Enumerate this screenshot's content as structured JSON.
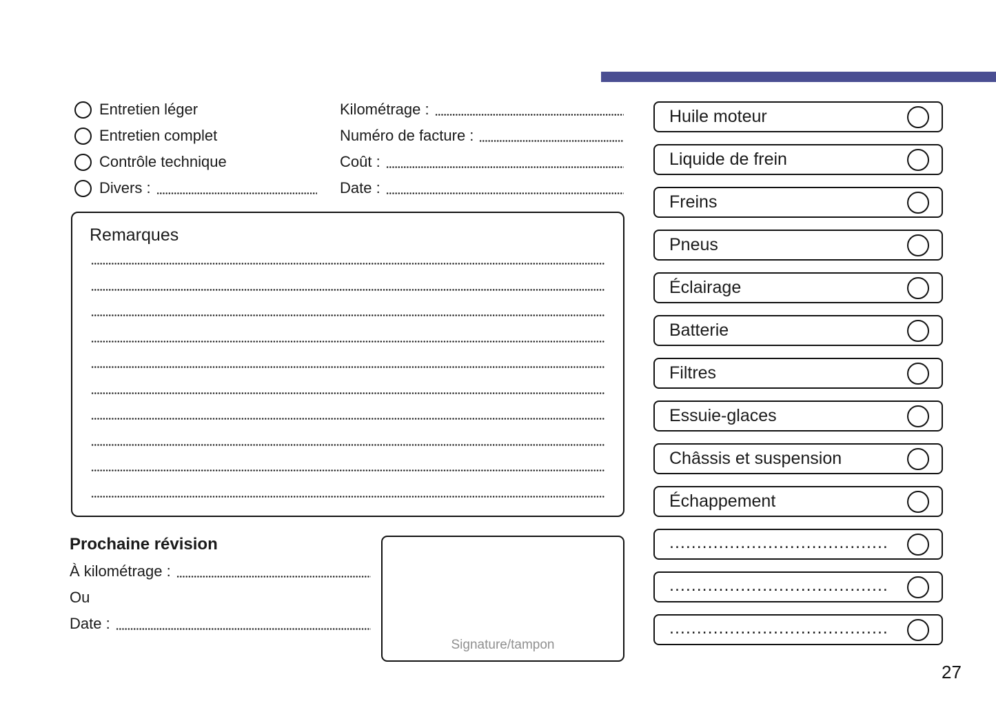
{
  "page": {
    "number": "27",
    "accent_bar_color": "#4a4e92",
    "background_color": "#ffffff"
  },
  "service_type": {
    "options": [
      {
        "label": "Entretien léger"
      },
      {
        "label": "Entretien complet"
      },
      {
        "label": "Contrôle technique"
      },
      {
        "label": "Divers :"
      }
    ]
  },
  "invoice_fields": [
    {
      "label": "Kilométrage :"
    },
    {
      "label": "Numéro de facture :"
    },
    {
      "label": "Coût :"
    },
    {
      "label": "Date :"
    }
  ],
  "remarks": {
    "title": "Remarques",
    "line_count": 10
  },
  "next_service": {
    "title": "Prochaine révision",
    "fields": [
      {
        "label": "À kilométrage :",
        "has_line": true
      },
      {
        "label": "Ou",
        "has_line": false
      },
      {
        "label": "Date :",
        "has_line": true
      }
    ]
  },
  "signature": {
    "label": "Signature/tampon"
  },
  "checklist": {
    "items": [
      {
        "label": "Huile moteur"
      },
      {
        "label": "Liquide de frein"
      },
      {
        "label": "Freins"
      },
      {
        "label": "Pneus"
      },
      {
        "label": "Éclairage"
      },
      {
        "label": "Batterie"
      },
      {
        "label": "Filtres"
      },
      {
        "label": "Essuie-glaces"
      },
      {
        "label": "Châssis et suspension"
      },
      {
        "label": "Échappement"
      },
      {
        "label": "........................................",
        "blank": true
      },
      {
        "label": "........................................",
        "blank": true
      },
      {
        "label": "........................................",
        "blank": true
      }
    ]
  }
}
